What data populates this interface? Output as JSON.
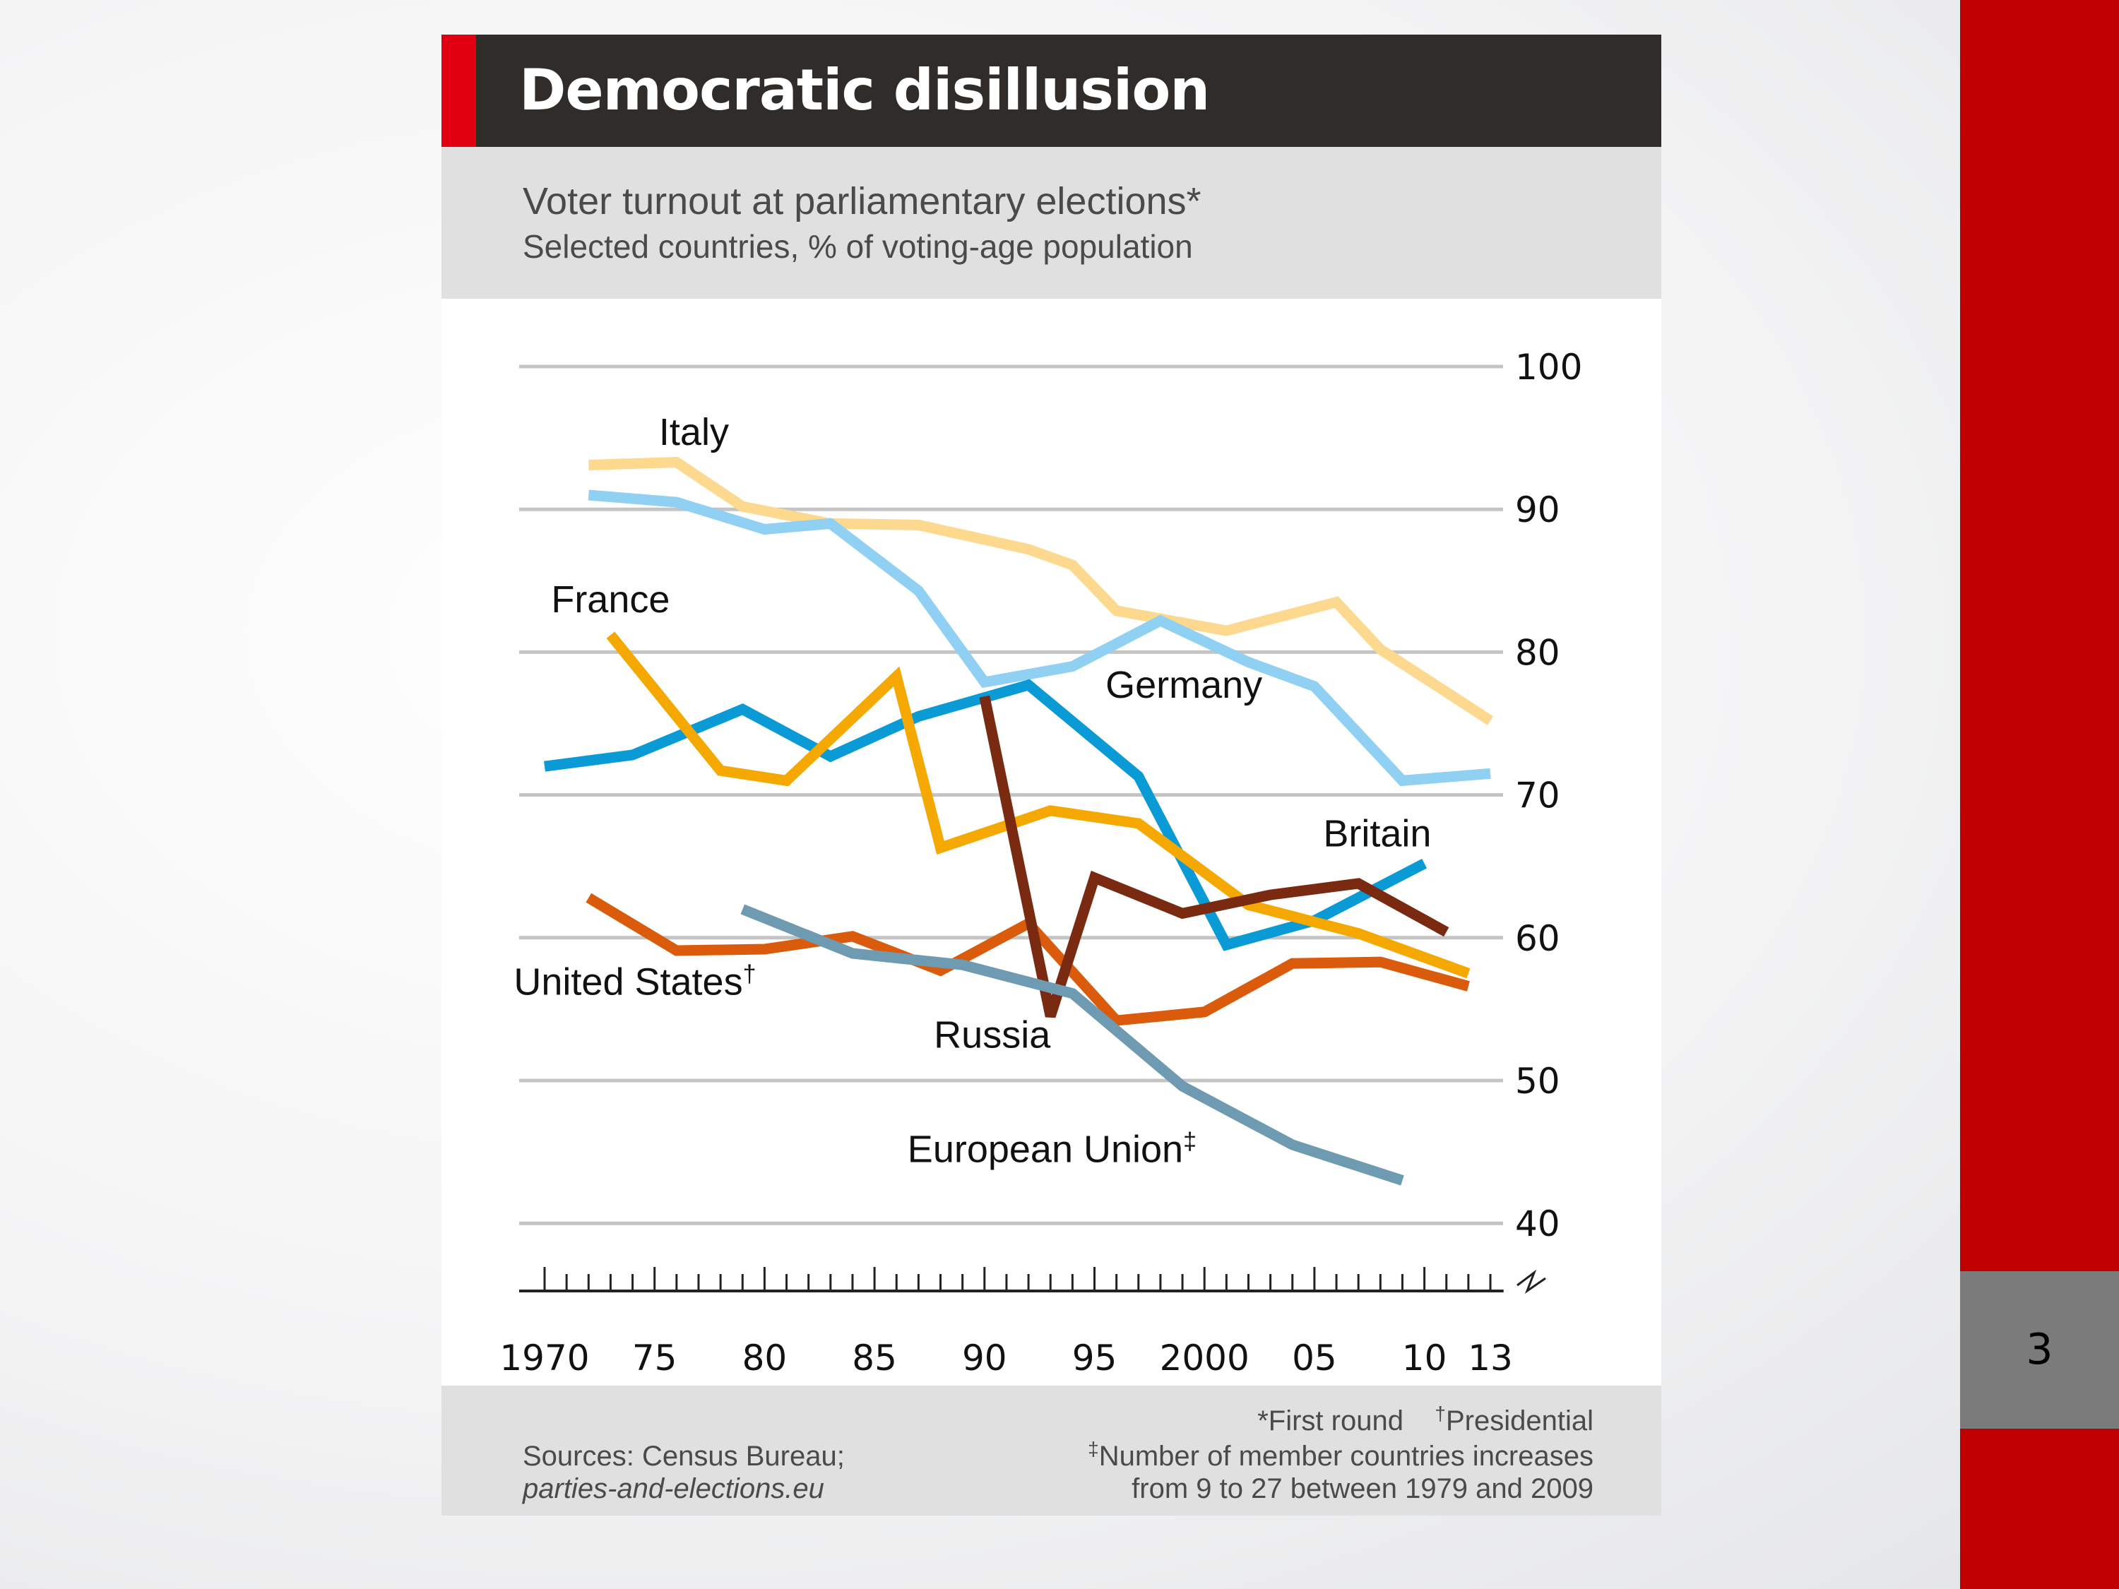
{
  "slide": {
    "number": "3"
  },
  "header": {
    "title": "Democratic disillusion",
    "subtitle": "Voter turnout at parliamentary elections*",
    "subtitle_sub": "Selected countries, % of voting-age population"
  },
  "footer": {
    "sources_line1": "Sources: Census Bureau;",
    "sources_line2": "parties-and-elections.eu",
    "note_first_round_mark": "*",
    "note_first_round": "First round",
    "note_presidential_mark": "†",
    "note_presidential": "Presidential",
    "note_eu_mark": "‡",
    "note_eu_line1": "Number of member countries increases",
    "note_eu_line2": "from 9 to 27 between 1979 and 2009"
  },
  "colors": {
    "title_bar": "#302c2a",
    "title_accent": "#e0000f",
    "panel_grey": "#e1e0e0",
    "slide_sidebar": "#c00000",
    "slide_number_box": "#7b7b7b"
  },
  "chart_data": {
    "type": "line",
    "title": "Democratic disillusion",
    "subtitle": "Voter turnout at parliamentary elections*",
    "xlabel": "",
    "ylabel": "Selected countries, % of voting-age population",
    "xlim": [
      1969,
      2014
    ],
    "ylim": [
      40,
      100
    ],
    "y_ticks": [
      100,
      90,
      80,
      70,
      60,
      50,
      40
    ],
    "y_axis_side": "right",
    "x_ticks": [
      {
        "value": 1970,
        "label": "1970"
      },
      {
        "value": 1975,
        "label": "75"
      },
      {
        "value": 1980,
        "label": "80"
      },
      {
        "value": 1985,
        "label": "85"
      },
      {
        "value": 1990,
        "label": "90"
      },
      {
        "value": 1995,
        "label": "95"
      },
      {
        "value": 2000,
        "label": "2000"
      },
      {
        "value": 2005,
        "label": "05"
      },
      {
        "value": 2010,
        "label": "10"
      },
      {
        "value": 2013,
        "label": "13"
      }
    ],
    "grid": true,
    "axis_break": true,
    "series": [
      {
        "name": "Italy",
        "label": "Italy",
        "color": "#fdd98f",
        "label_at": [
          1975.2,
          94.5
        ],
        "x": [
          1972,
          1976,
          1979,
          1983,
          1987,
          1992,
          1994,
          1996,
          2001,
          2006,
          2008,
          2013
        ],
        "values": [
          93.1,
          93.3,
          90.2,
          89.0,
          88.9,
          87.2,
          86.1,
          82.9,
          81.5,
          83.5,
          80.2,
          75.2
        ]
      },
      {
        "name": "Germany",
        "label": "Germany",
        "color": "#8fd0f3",
        "label_at": [
          1995.5,
          76.8
        ],
        "x": [
          1972,
          1976,
          1980,
          1983,
          1987,
          1990,
          1994,
          1998,
          2002,
          2005,
          2009,
          2013
        ],
        "values": [
          91.0,
          90.5,
          88.6,
          89.0,
          84.3,
          77.9,
          79.0,
          82.2,
          79.3,
          77.6,
          71.0,
          71.5
        ]
      },
      {
        "name": "Britain",
        "label": "Britain",
        "color": "#0a9ad6",
        "label_at": [
          2005.4,
          66.4
        ],
        "x": [
          1970,
          1974,
          1979,
          1983,
          1987,
          1992,
          1997,
          2001,
          2005,
          2010
        ],
        "values": [
          72.0,
          72.8,
          76.0,
          72.7,
          75.5,
          77.7,
          71.3,
          59.5,
          61.2,
          65.2
        ]
      },
      {
        "name": "France",
        "label": "France",
        "color": "#f5a800",
        "label_at": [
          1970.3,
          82.8
        ],
        "x": [
          1973,
          1978,
          1981,
          1986,
          1988,
          1993,
          1997,
          2002,
          2007,
          2012
        ],
        "values": [
          81.2,
          71.7,
          71.0,
          78.3,
          66.3,
          68.9,
          68.0,
          62.3,
          60.3,
          57.5
        ]
      },
      {
        "name": "United States",
        "label": "United States",
        "label_mark": "†",
        "color": "#d95b0b",
        "label_at": [
          1968.6,
          56.0
        ],
        "x": [
          1972,
          1976,
          1980,
          1984,
          1988,
          1992,
          1996,
          2000,
          2004,
          2008,
          2012
        ],
        "values": [
          62.8,
          59.1,
          59.2,
          60.1,
          57.7,
          61.0,
          54.2,
          54.8,
          58.2,
          58.3,
          56.6
        ]
      },
      {
        "name": "Russia",
        "label": "Russia",
        "color": "#7b2a12",
        "label_at": [
          1987.7,
          52.3
        ],
        "x": [
          1990,
          1993,
          1995,
          1999,
          2003,
          2007,
          2011
        ],
        "values": [
          76.9,
          54.5,
          64.2,
          61.7,
          63.0,
          63.8,
          60.4
        ]
      },
      {
        "name": "European Union",
        "label": "European Union",
        "label_mark": "‡",
        "color": "#6e9ab2",
        "label_at": [
          1986.5,
          44.3
        ],
        "x": [
          1979,
          1984,
          1989,
          1994,
          1999,
          2004,
          2009
        ],
        "values": [
          62.0,
          58.9,
          58.1,
          56.1,
          49.6,
          45.5,
          43.0
        ]
      }
    ]
  }
}
